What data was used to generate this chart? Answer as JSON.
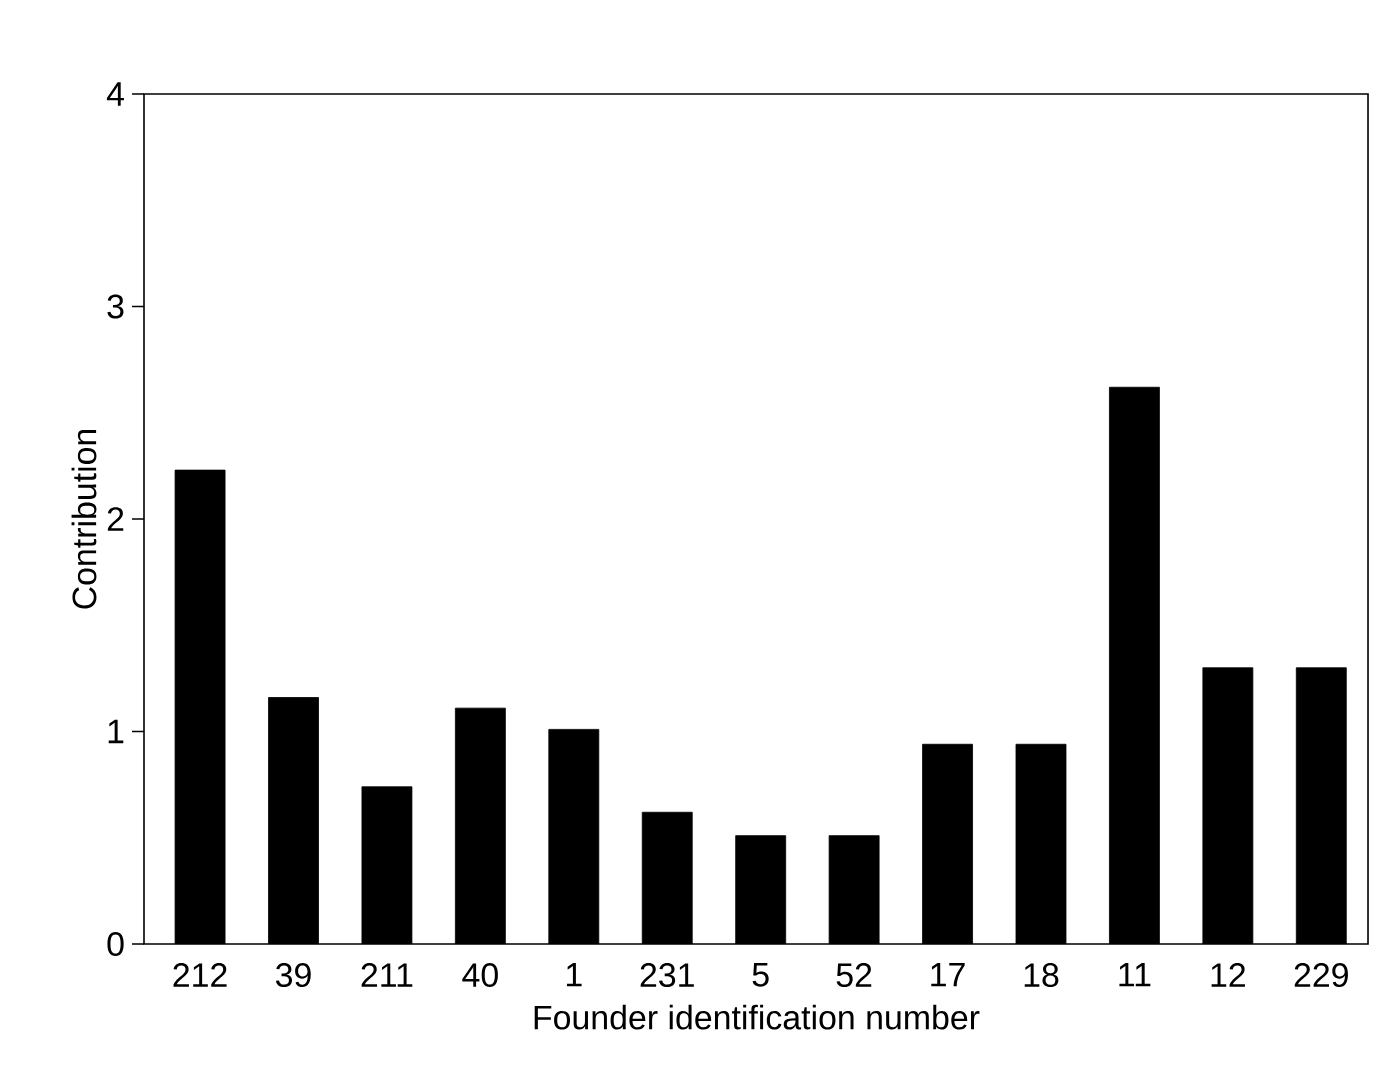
{
  "chart_data": {
    "type": "bar",
    "xlabel": "Founder identification number",
    "ylabel": "Contribution",
    "categories": [
      "212",
      "39",
      "211",
      "40",
      "1",
      "231",
      "5",
      "52",
      "17",
      "18",
      "11",
      "12",
      "229"
    ],
    "values": [
      2.23,
      1.16,
      0.74,
      1.11,
      1.01,
      0.62,
      0.51,
      0.51,
      0.94,
      0.94,
      2.62,
      1.3,
      1.3
    ],
    "color": "#000000",
    "ylim": [
      0,
      4
    ],
    "yticks": [
      0,
      1,
      2,
      3,
      4
    ],
    "grid": false
  }
}
